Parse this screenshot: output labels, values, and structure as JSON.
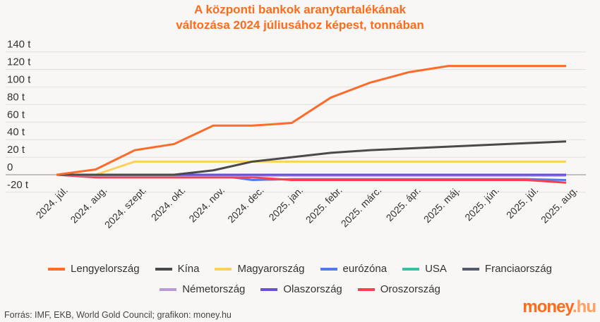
{
  "chart_data": {
    "type": "line",
    "title": "A központi bankok aranytartalékának változása 2024 júliusához képest, tonnában",
    "title_lines": [
      "A központi bankok aranytartalékának",
      "változása 2024 júliusához képest, tonnában"
    ],
    "xlabel": "",
    "ylabel": "",
    "ylim": [
      -20,
      140
    ],
    "yticks": [
      -20,
      0,
      20,
      40,
      60,
      80,
      100,
      120,
      140
    ],
    "ytick_labels": [
      "-20 t",
      "0",
      "20 t",
      "40 t",
      "60 t",
      "80 t",
      "100 t",
      "120 t",
      "140 t"
    ],
    "grid": true,
    "legend_position": "bottom",
    "categories": [
      "2024. júl.",
      "2024. aug.",
      "2024. szept.",
      "2024. okt.",
      "2024. nov.",
      "2024. dec.",
      "2025. jan.",
      "2025. febr.",
      "2025. márc.",
      "2025. ápr.",
      "2025. máj.",
      "2025. jún.",
      "2025. júl.",
      "2025. aug."
    ],
    "series": [
      {
        "name": "Lengyelország",
        "color": "#ff6b2b",
        "values": [
          0,
          6,
          28,
          35,
          56,
          56,
          59,
          88,
          105,
          117,
          124,
          124,
          124,
          124
        ]
      },
      {
        "name": "Kína",
        "color": "#4a4a4a",
        "values": [
          0,
          0,
          0,
          0,
          5,
          15,
          20,
          25,
          28,
          30,
          32,
          34,
          36,
          38
        ]
      },
      {
        "name": "Magyarország",
        "color": "#ffd15c",
        "values": [
          0,
          0,
          15,
          15,
          15,
          15,
          15,
          15,
          15,
          15,
          15,
          15,
          15,
          15
        ]
      },
      {
        "name": "eurózóna",
        "color": "#4f7de8",
        "values": [
          0,
          0,
          0,
          0,
          0,
          -6,
          -5,
          -5,
          -5,
          -5,
          -5,
          -5,
          -5,
          -6
        ]
      },
      {
        "name": "USA",
        "color": "#3bbfa3",
        "values": [
          0,
          0,
          0,
          0,
          0,
          0,
          0,
          0,
          0,
          0,
          0,
          0,
          0,
          0
        ]
      },
      {
        "name": "Franciaország",
        "color": "#555a6e",
        "values": [
          0,
          0,
          0,
          0,
          0,
          0,
          0,
          0,
          0,
          0,
          0,
          0,
          0,
          0
        ]
      },
      {
        "name": "Németország",
        "color": "#b89ad6",
        "values": [
          0,
          -1,
          -1,
          -1,
          -1,
          -1,
          -1,
          -1,
          -1,
          -1,
          -1,
          -1,
          -1,
          -1
        ]
      },
      {
        "name": "Olaszország",
        "color": "#6a4fe0",
        "values": [
          0,
          0,
          0,
          0,
          0,
          0,
          0,
          0,
          0,
          0,
          0,
          0,
          0,
          0
        ]
      },
      {
        "name": "Oroszország",
        "color": "#ff3f4f",
        "values": [
          0,
          -3,
          -3,
          -3,
          -3,
          -3,
          -6,
          -6,
          -6,
          -6,
          -6,
          -6,
          -6,
          -9
        ]
      }
    ]
  },
  "source": "Forrás: IMF, EKB, World Gold Council; grafikon: money.hu",
  "logo": {
    "main": "money",
    ".hu": ".hu"
  }
}
